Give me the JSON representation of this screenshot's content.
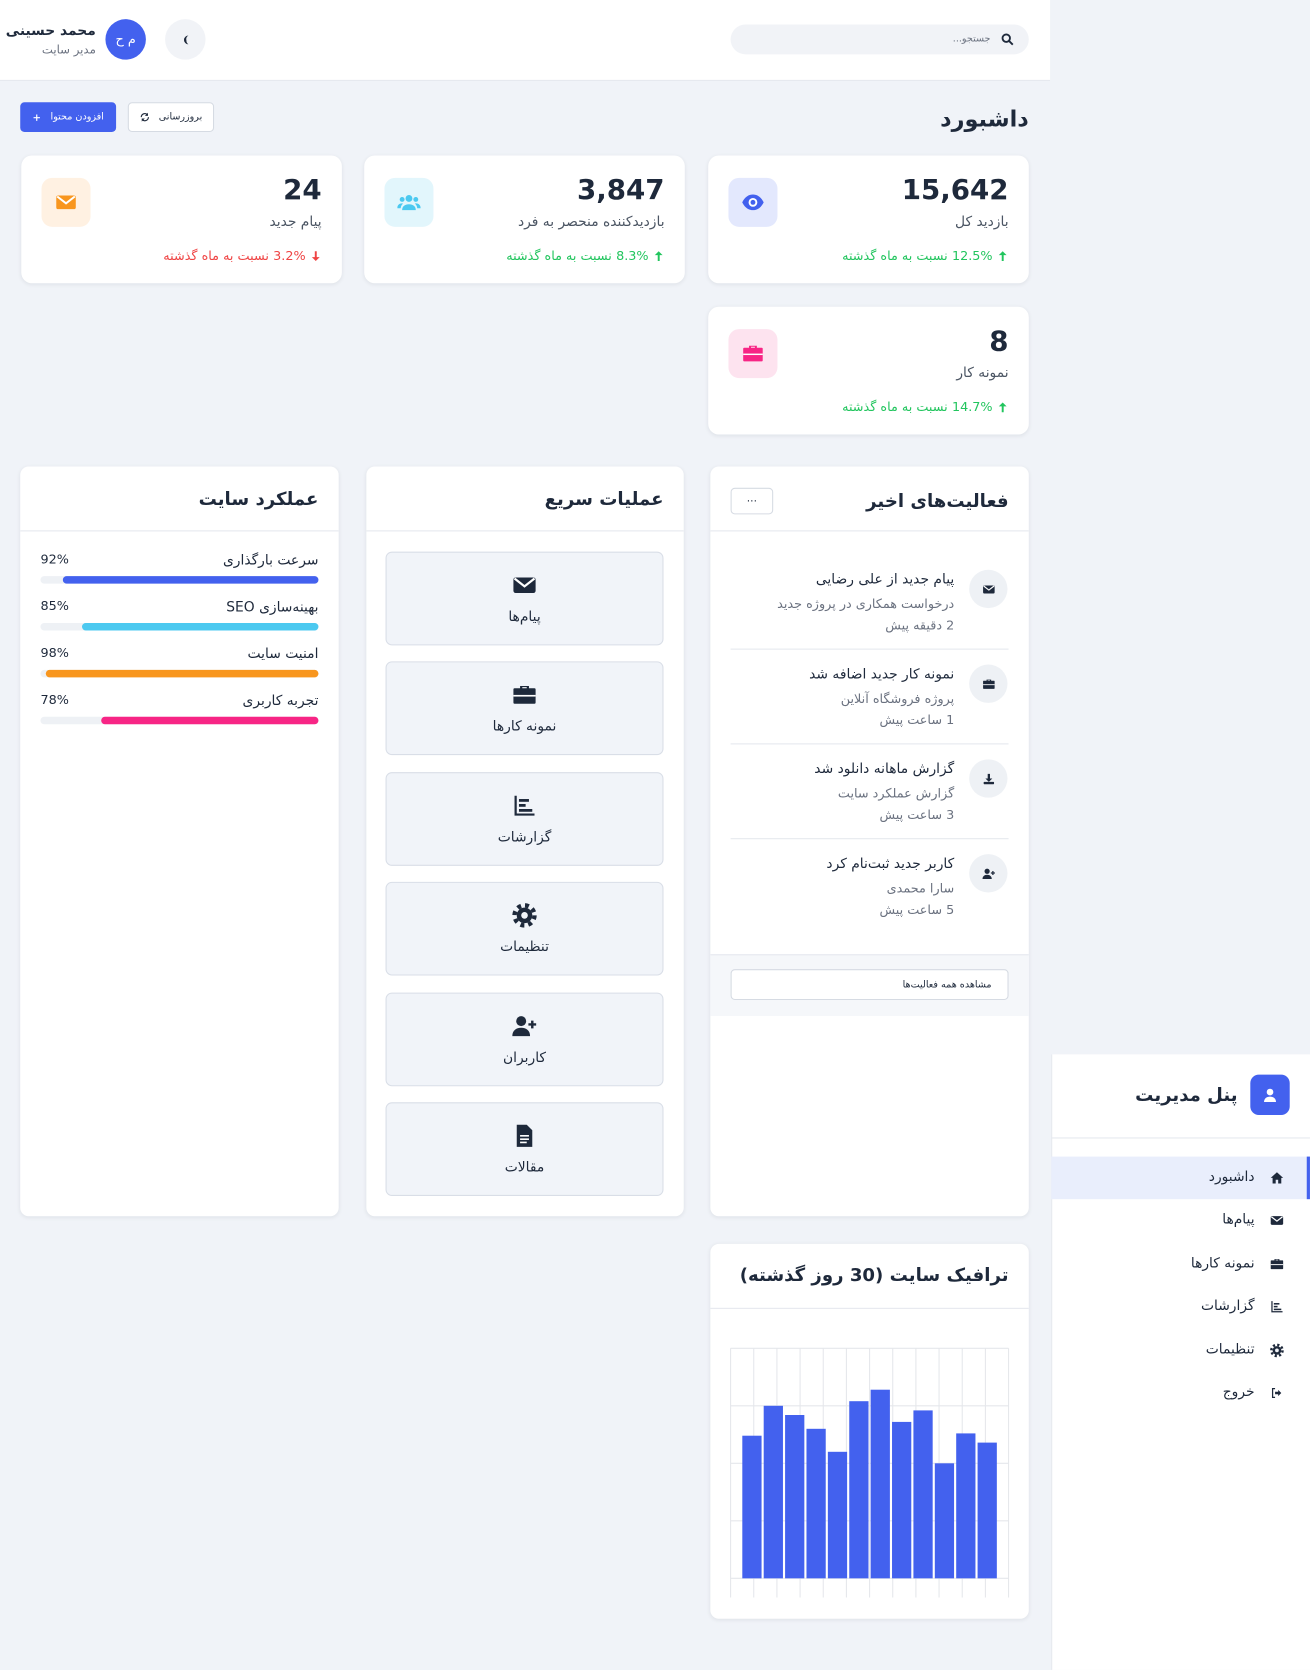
{
  "header": {
    "search_placeholder": "جستجو...",
    "user_name": "محمد حسینی",
    "user_role": "مدیر سایت",
    "avatar": "م ح"
  },
  "sidebar": {
    "title": "پنل مدیریت",
    "menu": [
      "داشبورد",
      "پیام‌ها",
      "نمونه کارها",
      "گزارشات",
      "تنظیمات",
      "خروج"
    ],
    "active": 0
  },
  "page": {
    "title": "داشبورد",
    "buttons": [
      "بروزرسانی",
      "افزودن محتوا"
    ]
  },
  "stats": [
    {
      "value": "15,642",
      "label": "بازدید کل",
      "change": "12.5%",
      "note": "نسبت به ماه گذشته",
      "trend": "up"
    },
    {
      "value": "3,847",
      "label": "بازدیدکننده منحصر به فرد",
      "change": "8.3%",
      "note": "نسبت به ماه گذشته",
      "trend": "up"
    },
    {
      "value": "24",
      "label": "پیام جدید",
      "change": "3.2%",
      "note": "نسبت به ماه گذشته",
      "trend": "down"
    },
    {
      "value": "8",
      "label": "نمونه کار",
      "change": "14.7%",
      "note": "نسبت به ماه گذشته",
      "trend": "up"
    }
  ],
  "activities": {
    "title": "فعالیت‌های اخیر",
    "more": "...",
    "items": [
      {
        "title": "پیام جدید از علی رضایی",
        "desc": "درخواست همکاری در پروژه جدید",
        "time": "2 دقیقه پیش"
      },
      {
        "title": "نمونه کار جدید اضافه شد",
        "desc": "پروژه فروشگاه آنلاین",
        "time": "1 ساعت پیش"
      },
      {
        "title": "گزارش ماهانه دانلود شد",
        "desc": "گزارش عملکرد سایت",
        "time": "3 ساعت پیش"
      },
      {
        "title": "کاربر جدید ثبت‌نام کرد",
        "desc": "سارا محمدی",
        "time": "5 ساعت پیش"
      }
    ],
    "footer": "مشاهده همه فعالیت‌ها"
  },
  "quick_actions": {
    "title": "عملیات سریع",
    "items": [
      "پیام‌ها",
      "نمونه کارها",
      "گزارشات",
      "تنظیمات",
      "کاربران",
      "مقالات"
    ]
  },
  "performance": {
    "title": "عملکرد سایت",
    "items": [
      {
        "name": "سرعت بارگذاری",
        "value": 92,
        "label": "92%",
        "color": "#4361ee"
      },
      {
        "name": "بهینه‌سازی SEO",
        "value": 85,
        "label": "85%",
        "color": "#4cc9f0"
      },
      {
        "name": "امنیت سایت",
        "value": 98,
        "label": "98%",
        "color": "#f8961e"
      },
      {
        "name": "تجربه کاربری",
        "value": 78,
        "label": "78%",
        "color": "#f72585"
      }
    ]
  },
  "chart_data": {
    "type": "bar",
    "title": "ترافیک سایت (30 روز گذشته)",
    "categories": [
      null,
      null,
      null,
      null,
      null,
      null,
      null,
      null,
      null,
      null,
      null,
      null
    ],
    "values": [
      62,
      75,
      71,
      65,
      55,
      77,
      82,
      68,
      73,
      50,
      63,
      59
    ],
    "color": "#4361ee",
    "ylim": [
      0,
      100
    ],
    "yticks": [
      0,
      25,
      50,
      75,
      100
    ],
    "grid": true
  }
}
